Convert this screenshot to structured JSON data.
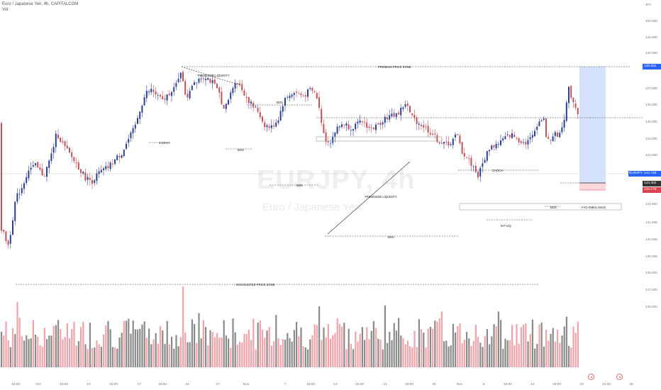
{
  "header": {
    "symbol_line": "Euro / Japanese Yen, 4h, CAPITALCOM",
    "vol_label": "Vol"
  },
  "watermark": {
    "ticker": "EURJPY, 4h",
    "name": "Euro / Japanese Yen"
  },
  "price_axis": {
    "currency": "JPY",
    "ticks": [
      "150.000",
      "149.000",
      "148.000",
      "147.000",
      "146.000",
      "145.000",
      "144.000",
      "143.000",
      "142.000",
      "141.000",
      "140.000",
      "139.000",
      "138.000",
      "137.000",
      "136.000"
    ],
    "tag_premium": "148.052",
    "tag_symbol": "EURJPY",
    "tag_current": "144.729",
    "tag_target": "144.402",
    "tag_stop": "144.176"
  },
  "time_axis": {
    "labels": [
      "16:00",
      "Oct",
      "16:00",
      "10",
      "16:00",
      "17",
      "16:00",
      "24",
      "27",
      "Nov",
      "7",
      "16:00",
      "14",
      "16:00",
      "21",
      "16:00",
      "28",
      "Dec",
      "6",
      "16:00",
      "12",
      "16:00",
      "19",
      "16:00",
      "26"
    ]
  },
  "annotations": {
    "premium": "PREMIUM PRICE ZONE",
    "discount": "DISCOUNTED PRICE ZONE",
    "trendside_top": "TRENDSIDE LIQUIDITY",
    "trendside_mid": "TRENDSIDE LIQUIDITY",
    "choch_left": "CHOCH",
    "choch_right": "CHOCH",
    "bos_1": "BOS",
    "bos_2": "BOS",
    "bos_3": "BOS",
    "bos_4": "BOS",
    "bos_5": "BOS",
    "int_liq": "INT-LIQ",
    "fvg": "FVG-IMBALANCE"
  },
  "colors": {
    "up": "#2a3f8f",
    "down": "#c0505a",
    "vol_up": "#8a8a8a",
    "vol_down": "#f0a3aa",
    "target_zone": "#cfe0fb",
    "stop_zone": "#f9d7da",
    "tag_blue": "#2962ff",
    "tag_red": "#d9434f",
    "tag_dark": "#333"
  }
}
